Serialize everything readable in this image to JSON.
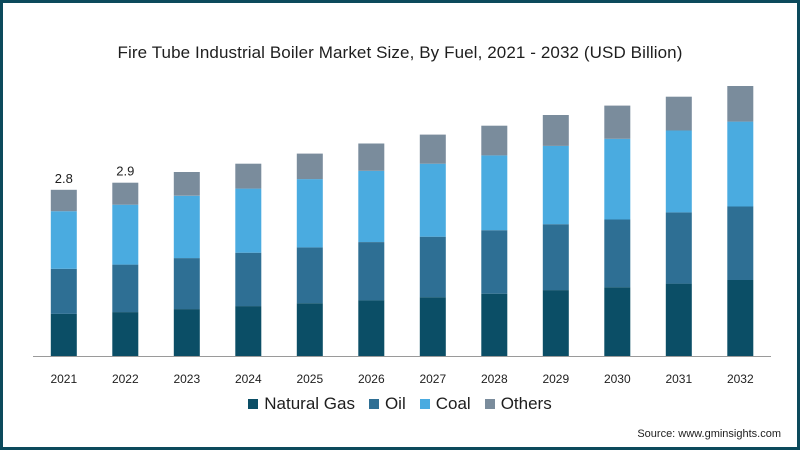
{
  "chart_data": {
    "type": "bar",
    "stacked": true,
    "title": "Fire Tube Industrial Boiler Market Size, By Fuel, 2021 - 2032 (USD Billion)",
    "categories": [
      "2021",
      "2022",
      "2023",
      "2024",
      "2025",
      "2026",
      "2027",
      "2028",
      "2029",
      "2030",
      "2031",
      "2032"
    ],
    "series": [
      {
        "name": "Natural Gas",
        "color": "#0b4e66",
        "values": [
          0.71,
          0.74,
          0.79,
          0.84,
          0.89,
          0.94,
          0.99,
          1.05,
          1.11,
          1.16,
          1.22,
          1.28
        ]
      },
      {
        "name": "Oil",
        "color": "#2e6f94",
        "values": [
          0.76,
          0.8,
          0.86,
          0.9,
          0.94,
          0.98,
          1.02,
          1.07,
          1.11,
          1.14,
          1.2,
          1.24
        ]
      },
      {
        "name": "Coal",
        "color": "#4aabe0",
        "values": [
          0.97,
          1.01,
          1.05,
          1.08,
          1.15,
          1.2,
          1.23,
          1.26,
          1.32,
          1.36,
          1.38,
          1.43
        ]
      },
      {
        "name": "Others",
        "color": "#7a8c9c",
        "values": [
          0.36,
          0.37,
          0.4,
          0.42,
          0.43,
          0.46,
          0.49,
          0.5,
          0.52,
          0.56,
          0.57,
          0.6
        ]
      }
    ],
    "data_labels": [
      {
        "category": "2021",
        "text": "2.8"
      },
      {
        "category": "2022",
        "text": "2.9"
      }
    ],
    "ylim": [
      0,
      4.6
    ],
    "legend_position": "bottom",
    "grid": false,
    "axis_color": "#9a9a9a"
  },
  "source": "Source: www.gminsights.com"
}
